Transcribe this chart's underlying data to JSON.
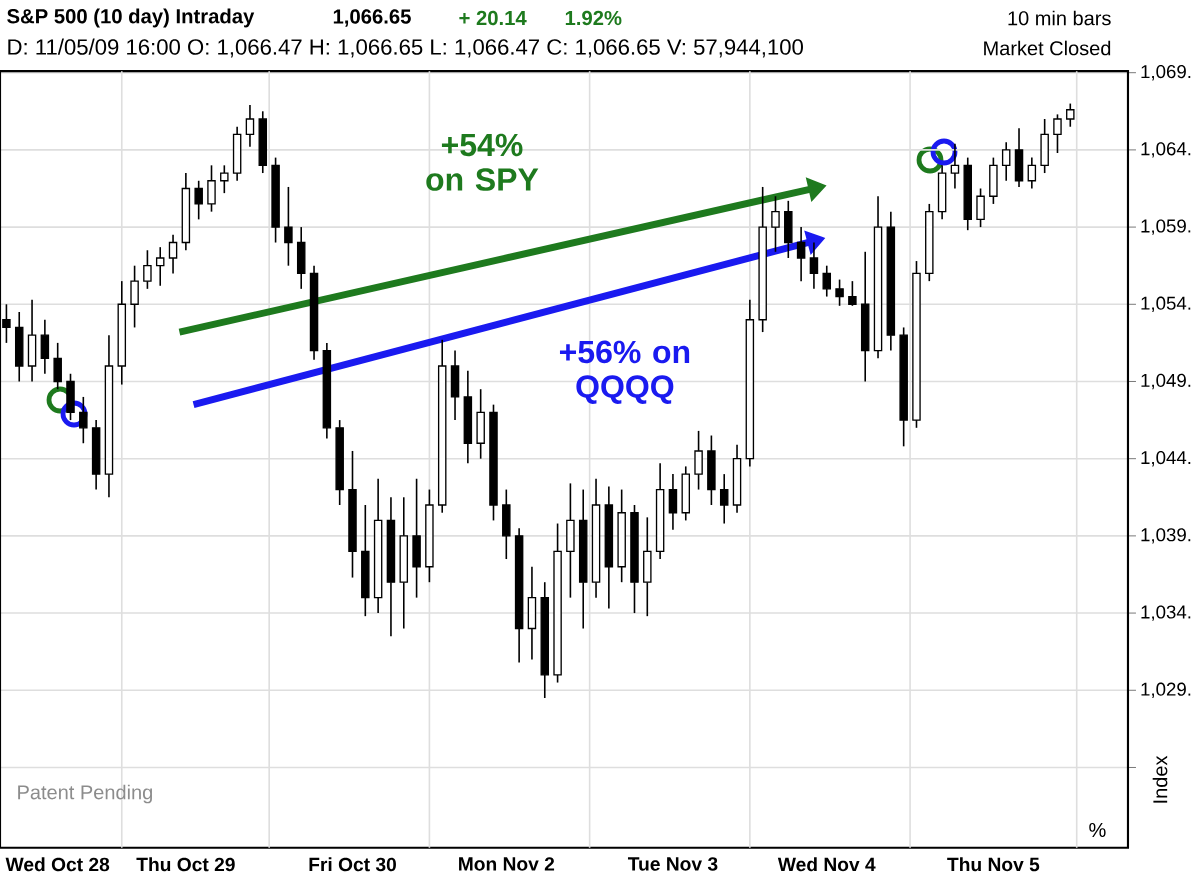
{
  "chart_data": {
    "type": "candlestick",
    "title": "S&P 500 (10 day) Intraday",
    "subtitle": "D: 11/05/09 16:00 O: 1,066.47 H: 1,066.65 L: 1,066.47 C: 1,066.65 V: 57,944,100",
    "ylabel": "Index",
    "annotations": [
      "1,066.65",
      "+ 20.14",
      "1.92%",
      "10 min bars",
      "Market Closed",
      "+54% on SPY",
      "+56% on QQQQ",
      "Patent Pending",
      "%"
    ],
    "categories": [
      null,
      null,
      null,
      null,
      "Wed Oct 28",
      null,
      null,
      null,
      null,
      null,
      null,
      null,
      null,
      null,
      "Thu Oct 29",
      null,
      null,
      null,
      null,
      null,
      null,
      null,
      null,
      null,
      null,
      null,
      null,
      "Fri Oct 30",
      null,
      null,
      null,
      null,
      null,
      null,
      null,
      null,
      null,
      null,
      null,
      "Mon Nov 2",
      null,
      null,
      null,
      null,
      null,
      null,
      null,
      null,
      null,
      null,
      null,
      null,
      "Tue Nov 3",
      null,
      null,
      null,
      null,
      null,
      null,
      null,
      null,
      null,
      null,
      null,
      "Wed Nov 4",
      null,
      null,
      null,
      null,
      null,
      null,
      null,
      null,
      null,
      null,
      null,
      null,
      "Thu Nov 5",
      null,
      null,
      null,
      null,
      null,
      null
    ],
    "ohlc": [
      [
        1053,
        1054,
        1051.5,
        1052.5
      ],
      [
        1052.5,
        1053.5,
        1049,
        1050
      ],
      [
        1050,
        1054.3,
        1049,
        1052
      ],
      [
        1052,
        1053,
        1049.5,
        1050.5
      ],
      [
        1050.5,
        1051.5,
        1048.5,
        1049
      ],
      [
        1049,
        1049.5,
        1046.5,
        1047
      ],
      [
        1047,
        1048,
        1045,
        1046
      ],
      [
        1046,
        1046.5,
        1042,
        1043
      ],
      [
        1043,
        1052,
        1041.5,
        1050
      ],
      [
        1050,
        1055.5,
        1048.8,
        1054
      ],
      [
        1054,
        1056.5,
        1052.5,
        1055.5
      ],
      [
        1055.5,
        1057.5,
        1055,
        1056.5
      ],
      [
        1056.5,
        1057.7,
        1055.2,
        1057
      ],
      [
        1057,
        1058.5,
        1056,
        1058
      ],
      [
        1058,
        1062.5,
        1057.5,
        1061.5
      ],
      [
        1061.5,
        1062,
        1059.5,
        1060.5
      ],
      [
        1060.5,
        1063,
        1060,
        1062
      ],
      [
        1062,
        1063,
        1061.2,
        1062.5
      ],
      [
        1062.5,
        1065.5,
        1062,
        1065
      ],
      [
        1065,
        1066.9,
        1064.2,
        1066
      ],
      [
        1066,
        1066.5,
        1062.5,
        1063
      ],
      [
        1063,
        1063.5,
        1058,
        1059
      ],
      [
        1059,
        1061.6,
        1056.5,
        1058
      ],
      [
        1058,
        1059,
        1055,
        1056
      ],
      [
        1056,
        1056.5,
        1050.4,
        1051
      ],
      [
        1051,
        1051.5,
        1045.3,
        1046
      ],
      [
        1046,
        1046.5,
        1041,
        1042
      ],
      [
        1042,
        1044.5,
        1036.3,
        1038
      ],
      [
        1038,
        1041,
        1033.8,
        1035
      ],
      [
        1035,
        1042.7,
        1034,
        1040
      ],
      [
        1040,
        1041.5,
        1032.5,
        1036
      ],
      [
        1036,
        1041.5,
        1033,
        1039
      ],
      [
        1039,
        1042.7,
        1035,
        1037
      ],
      [
        1037,
        1042,
        1036,
        1041
      ],
      [
        1041,
        1051.7,
        1040.5,
        1050
      ],
      [
        1050,
        1051,
        1046.5,
        1048
      ],
      [
        1048,
        1049.7,
        1043.7,
        1045
      ],
      [
        1045,
        1048.5,
        1044,
        1047
      ],
      [
        1047,
        1047.5,
        1040,
        1041
      ],
      [
        1041,
        1042,
        1037.5,
        1039
      ],
      [
        1039,
        1039.5,
        1030.8,
        1033
      ],
      [
        1033,
        1037,
        1031,
        1035
      ],
      [
        1035,
        1036,
        1028.5,
        1030
      ],
      [
        1030,
        1039.8,
        1029.5,
        1038
      ],
      [
        1038,
        1042.4,
        1035,
        1040
      ],
      [
        1040,
        1042,
        1033,
        1036
      ],
      [
        1036,
        1042.7,
        1035,
        1041
      ],
      [
        1041,
        1042.2,
        1034.3,
        1037
      ],
      [
        1037,
        1042,
        1036,
        1040.5
      ],
      [
        1040.5,
        1041,
        1034,
        1036
      ],
      [
        1036,
        1040.2,
        1033.8,
        1038
      ],
      [
        1038,
        1043.7,
        1037.5,
        1042
      ],
      [
        1042,
        1043,
        1039.4,
        1040.5
      ],
      [
        1040.5,
        1043.5,
        1040,
        1043
      ],
      [
        1043,
        1045.8,
        1042,
        1044.5
      ],
      [
        1044.5,
        1045.5,
        1041,
        1042
      ],
      [
        1042,
        1043,
        1039.8,
        1041
      ],
      [
        1041,
        1044.9,
        1040.5,
        1044
      ],
      [
        1044,
        1054.3,
        1043.5,
        1053
      ],
      [
        1053,
        1061.6,
        1052.2,
        1059
      ],
      [
        1059,
        1061,
        1057.4,
        1060
      ],
      [
        1060,
        1060.7,
        1057,
        1058
      ],
      [
        1058,
        1059,
        1055.5,
        1057
      ],
      [
        1057,
        1058,
        1055,
        1056
      ],
      [
        1056,
        1056.5,
        1054.5,
        1055
      ],
      [
        1055,
        1055.6,
        1053.9,
        1054.5
      ],
      [
        1054.5,
        1055.5,
        1053.9,
        1054
      ],
      [
        1054,
        1057.4,
        1049,
        1051
      ],
      [
        1051,
        1061,
        1050.5,
        1059
      ],
      [
        1059,
        1060,
        1051,
        1052
      ],
      [
        1052,
        1052.5,
        1044.8,
        1046.5
      ],
      [
        1046.5,
        1056.8,
        1046,
        1056
      ],
      [
        1056,
        1060.5,
        1055.5,
        1060
      ],
      [
        1060,
        1063,
        1059.5,
        1062.5
      ],
      [
        1062.5,
        1064.4,
        1061.5,
        1063
      ],
      [
        1063,
        1063.5,
        1058.8,
        1059.5
      ],
      [
        1059.5,
        1061.5,
        1059,
        1061
      ],
      [
        1061,
        1063.5,
        1060.5,
        1063
      ],
      [
        1063,
        1064.5,
        1062,
        1064
      ],
      [
        1064,
        1065.4,
        1061.6,
        1062
      ],
      [
        1062,
        1063.5,
        1061.5,
        1063
      ],
      [
        1063,
        1066,
        1062.5,
        1065
      ],
      [
        1065,
        1066.3,
        1063.8,
        1066
      ],
      [
        1066,
        1067,
        1065.5,
        1066.6
      ]
    ],
    "ylim": [
      1018.8,
      1069.1
    ],
    "yticks": [
      {
        "value": 1024,
        "label": null
      },
      {
        "value": 1029,
        "label": "1,029."
      },
      {
        "value": 1034,
        "label": "1,034."
      },
      {
        "value": 1039,
        "label": "1,039."
      },
      {
        "value": 1044,
        "label": "1,044."
      },
      {
        "value": 1049,
        "label": "1,049."
      },
      {
        "value": 1054,
        "label": "1,054."
      },
      {
        "value": 1059,
        "label": "1,059."
      },
      {
        "value": 1064,
        "label": "1,064."
      },
      {
        "value": 1069,
        "label": "1,069."
      }
    ],
    "grid": true
  }
}
